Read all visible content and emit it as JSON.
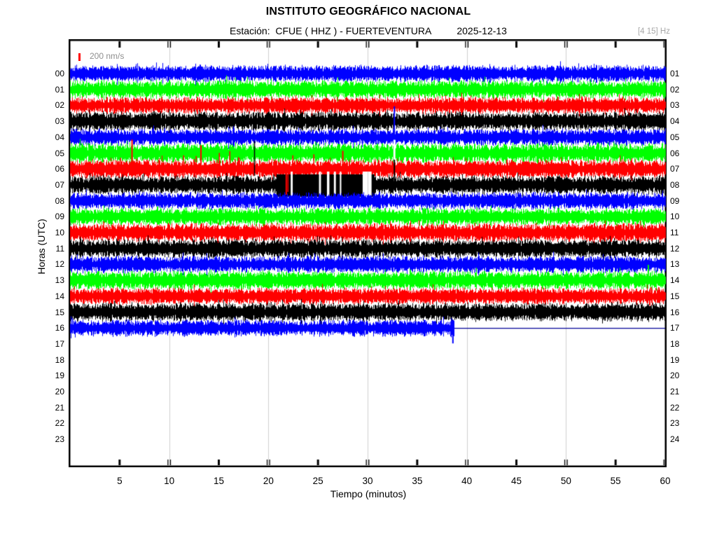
{
  "header": {
    "title": "INSTITUTO GEOGRÁFICO NACIONAL",
    "station_line": {
      "label": "Estación:",
      "station": "CFUE ( HHZ ) - FUERTEVENTURA",
      "date": "2025-12-13"
    },
    "filter_band": "[4 15] Hz"
  },
  "legend": {
    "scale_label": "200 nm/s"
  },
  "axes": {
    "y_label": "Horas (UTC)",
    "x_label": "Tiempo (minutos)",
    "x_ticks": [
      5,
      10,
      15,
      20,
      25,
      30,
      35,
      40,
      45,
      50,
      55,
      60
    ],
    "x_gridlines": [
      10,
      20,
      30,
      40,
      50
    ],
    "x_range_minutes": [
      0,
      60
    ],
    "left_hour_labels": [
      "00",
      "01",
      "02",
      "03",
      "04",
      "05",
      "06",
      "07",
      "08",
      "09",
      "10",
      "11",
      "12",
      "13",
      "14",
      "15",
      "16",
      "17",
      "18",
      "19",
      "20",
      "21",
      "22",
      "23"
    ],
    "right_hour_labels": [
      "01",
      "02",
      "03",
      "04",
      "05",
      "06",
      "07",
      "08",
      "09",
      "10",
      "11",
      "12",
      "13",
      "14",
      "15",
      "16",
      "17",
      "18",
      "19",
      "20",
      "21",
      "22",
      "23",
      "24"
    ]
  },
  "colors": {
    "grid": "#cfcfcf",
    "border": "#000000",
    "flat_line": "#000099",
    "filter_text": "#a8a8a8",
    "scale_text": "#8f8f8f"
  },
  "chart_data": {
    "type": "helicorder",
    "title": "INSTITUTO GEOGRÁFICO NACIONAL",
    "station": "CFUE ( HHZ ) - FUERTEVENTURA",
    "channel": "HHZ",
    "date": "2025-12-13",
    "filter_hz": [
      4,
      15
    ],
    "scale_nm_per_s": 200,
    "minutes_per_row": 60,
    "hours_shown": 24,
    "last_sample": {
      "hour": 16,
      "minute": 38.7
    },
    "trace_color_cycle": [
      "#0000ff",
      "#00ff00",
      "#ff0000",
      "#000000"
    ],
    "rows": [
      {
        "hour": 0,
        "color": "#0000ff",
        "start_min": 0,
        "end_min": 60,
        "amp": 10,
        "events": []
      },
      {
        "hour": 1,
        "color": "#00ff00",
        "start_min": 0,
        "end_min": 60,
        "amp": 11,
        "events": []
      },
      {
        "hour": 2,
        "color": "#ff0000",
        "start_min": 0,
        "end_min": 60,
        "amp": 10,
        "events": []
      },
      {
        "hour": 3,
        "color": "#000000",
        "start_min": 0,
        "end_min": 60,
        "amp": 11.5,
        "events": []
      },
      {
        "hour": 4,
        "color": "#0000ff",
        "start_min": 0,
        "end_min": 60,
        "amp": 10,
        "events": [
          {
            "type": "spike",
            "t": 32.7,
            "up": 44,
            "down": 9,
            "w": 2
          }
        ]
      },
      {
        "hour": 5,
        "color": "#00ff00",
        "start_min": 0,
        "end_min": 60,
        "amp": 12,
        "events": [
          {
            "type": "gap",
            "t0": 32.6,
            "t1": 32.8
          }
        ]
      },
      {
        "hour": 6,
        "color": "#ff0000",
        "start_min": 0,
        "end_min": 60,
        "amp": 11,
        "events": [
          {
            "type": "spike",
            "t": 5.1,
            "up": 16,
            "down": 6,
            "w": 1.5
          },
          {
            "type": "spike",
            "t": 6.25,
            "up": 42,
            "down": 10,
            "w": 2
          },
          {
            "type": "burst",
            "t0": 10.5,
            "t1": 27.8,
            "up": 30,
            "down": 13,
            "p": 0.13
          },
          {
            "type": "spike",
            "t": 13.2,
            "up": 34,
            "down": 8,
            "w": 2
          },
          {
            "type": "spike",
            "t": 18.6,
            "up": 40,
            "down": 10,
            "w": 1.5,
            "color": "#000000"
          },
          {
            "type": "spike",
            "t": 27.5,
            "up": 26,
            "down": 24,
            "w": 2
          }
        ]
      },
      {
        "hour": 7,
        "color": "#000000",
        "start_min": 0,
        "end_min": 60,
        "amp": 11,
        "events": [
          {
            "type": "burst",
            "t0": 16,
            "t1": 20.8,
            "up": 20,
            "down": 9,
            "p": 0.07
          },
          {
            "type": "band",
            "t0": 20.8,
            "t1": 30.7,
            "up": 15,
            "down": 17
          },
          {
            "type": "gap",
            "t0": 22.25,
            "t1": 22.45
          },
          {
            "type": "gap",
            "t0": 25.1,
            "t1": 25.3
          },
          {
            "type": "gap",
            "t0": 25.9,
            "t1": 26.15
          },
          {
            "type": "gap",
            "t0": 26.6,
            "t1": 26.8
          },
          {
            "type": "gap",
            "t0": 27.2,
            "t1": 27.35
          },
          {
            "type": "gap",
            "t0": 29.5,
            "t1": 30.4
          },
          {
            "type": "spike",
            "t": 21.8,
            "up": 19,
            "down": 14,
            "w": 2,
            "color": "#ff0000"
          },
          {
            "type": "spike",
            "t": 21.97,
            "up": 19,
            "down": 10,
            "w": 1.5,
            "color": "#ff0000"
          },
          {
            "type": "spike",
            "t": 32.7,
            "up": 36,
            "down": 8,
            "w": 2
          }
        ]
      },
      {
        "hour": 8,
        "color": "#0000ff",
        "start_min": 0,
        "end_min": 60,
        "amp": 10,
        "events": []
      },
      {
        "hour": 9,
        "color": "#00ff00",
        "start_min": 0,
        "end_min": 60,
        "amp": 10.5,
        "events": []
      },
      {
        "hour": 10,
        "color": "#ff0000",
        "start_min": 0,
        "end_min": 60,
        "amp": 11,
        "events": [
          {
            "type": "spike",
            "t": 3.4,
            "up": 16,
            "down": 7,
            "w": 1.5
          }
        ]
      },
      {
        "hour": 11,
        "color": "#000000",
        "start_min": 0,
        "end_min": 60,
        "amp": 11,
        "events": []
      },
      {
        "hour": 12,
        "color": "#0000ff",
        "start_min": 0,
        "end_min": 60,
        "amp": 10,
        "events": []
      },
      {
        "hour": 13,
        "color": "#00ff00",
        "start_min": 0,
        "end_min": 60,
        "amp": 11,
        "events": [
          {
            "type": "spike",
            "t": 58.3,
            "up": 22,
            "down": 6,
            "w": 2
          }
        ]
      },
      {
        "hour": 14,
        "color": "#ff0000",
        "start_min": 0,
        "end_min": 60,
        "amp": 10,
        "events": [
          {
            "type": "spike",
            "t": 58.6,
            "up": 13,
            "down": 5,
            "w": 1.5
          }
        ]
      },
      {
        "hour": 15,
        "color": "#000000",
        "start_min": 0,
        "end_min": 60,
        "amp": 11,
        "events": [
          {
            "type": "spike",
            "t": 4.5,
            "up": 16,
            "down": 5,
            "w": 1.5
          },
          {
            "type": "spike",
            "t": 55.2,
            "up": 15,
            "down": 5,
            "w": 1.5
          }
        ]
      },
      {
        "hour": 16,
        "color": "#0000ff",
        "start_min": 0,
        "end_min": 38.7,
        "amp": 10,
        "events": [
          {
            "type": "spike",
            "t": 0.25,
            "up": 14,
            "down": 8,
            "w": 1.5
          },
          {
            "type": "spike",
            "t": 38.6,
            "up": 12,
            "down": 22,
            "w": 2
          },
          {
            "type": "flat",
            "t0": 38.75,
            "t1": 60
          }
        ]
      },
      {
        "hour": 17,
        "color": null,
        "start_min": null,
        "end_min": null,
        "amp": 0,
        "events": []
      },
      {
        "hour": 18,
        "color": null,
        "start_min": null,
        "end_min": null,
        "amp": 0,
        "events": []
      },
      {
        "hour": 19,
        "color": null,
        "start_min": null,
        "end_min": null,
        "amp": 0,
        "events": []
      },
      {
        "hour": 20,
        "color": null,
        "start_min": null,
        "end_min": null,
        "amp": 0,
        "events": []
      },
      {
        "hour": 21,
        "color": null,
        "start_min": null,
        "end_min": null,
        "amp": 0,
        "events": []
      },
      {
        "hour": 22,
        "color": null,
        "start_min": null,
        "end_min": null,
        "amp": 0,
        "events": []
      },
      {
        "hour": 23,
        "color": null,
        "start_min": null,
        "end_min": null,
        "amp": 0,
        "events": []
      }
    ]
  }
}
